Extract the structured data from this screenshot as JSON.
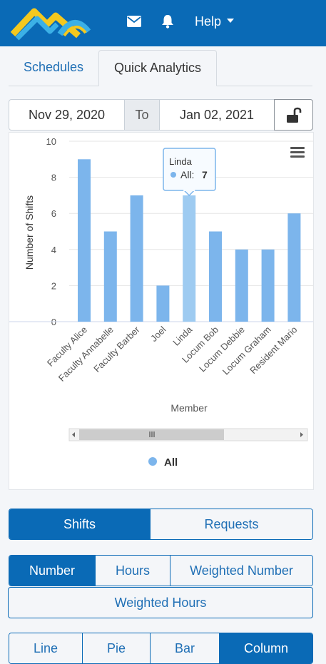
{
  "header": {
    "help_label": "Help",
    "colors": {
      "bar": "#0a6ab6",
      "logo_yellow": "#f4c81e",
      "logo_blue": "#3bb0e6"
    }
  },
  "tabs": [
    {
      "label": "Schedules",
      "active": false
    },
    {
      "label": "Quick Analytics",
      "active": true
    }
  ],
  "date_range": {
    "from": "Nov 29, 2020",
    "to_label": "To",
    "to": "Jan 02, 2021"
  },
  "chart_data": {
    "type": "bar",
    "title": "",
    "xlabel": "Member",
    "ylabel": "Number of Shifts",
    "ylim": [
      0,
      10
    ],
    "yticks": [
      0,
      2,
      4,
      6,
      8,
      10
    ],
    "grid": true,
    "legend_position": "bottom",
    "categories": [
      "Faculty Alice",
      "Faculty Annabelle",
      "Faculty Barber",
      "Joel",
      "Linda",
      "Locum Bob",
      "Locum Debbie",
      "Locum Graham",
      "Resident Mario"
    ],
    "series": [
      {
        "name": "All",
        "values": [
          9,
          5,
          7,
          2,
          7,
          5,
          4,
          4,
          6
        ],
        "color": "#7cb5ec",
        "highlight_color": "#9ecbf1"
      }
    ],
    "tooltip": {
      "category": "Linda",
      "series": "All",
      "value": "7"
    }
  },
  "type_toggle": [
    {
      "label": "Shifts",
      "active": true
    },
    {
      "label": "Requests",
      "active": false
    }
  ],
  "metric_toggle": [
    {
      "label": "Number",
      "active": true
    },
    {
      "label": "Hours",
      "active": false
    },
    {
      "label": "Weighted Number",
      "active": false
    },
    {
      "label": "Weighted Hours",
      "active": false
    }
  ],
  "chart_type_toggle": [
    {
      "label": "Line",
      "active": false
    },
    {
      "label": "Pie",
      "active": false
    },
    {
      "label": "Bar",
      "active": false
    },
    {
      "label": "Column",
      "active": true
    }
  ]
}
